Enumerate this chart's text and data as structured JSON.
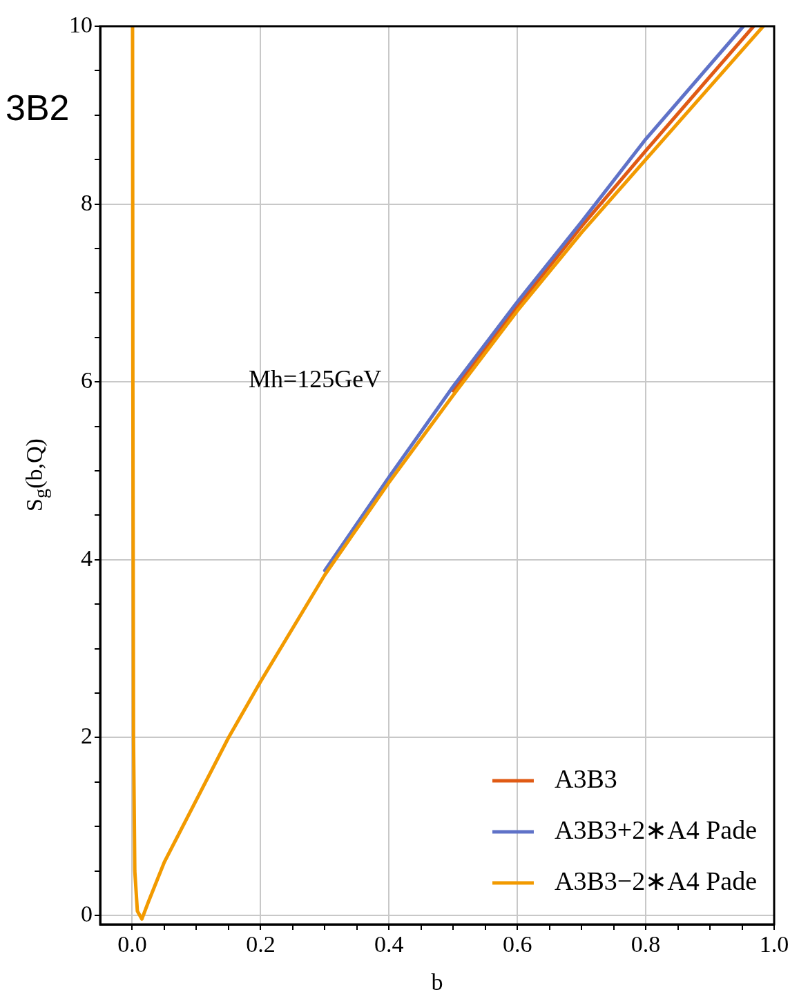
{
  "chart_data": {
    "type": "line",
    "xlabel": "b",
    "ylabel": "S$_{g}$(b,Q)",
    "xlim": [
      -0.05,
      1.0
    ],
    "ylim": [
      -0.1,
      10
    ],
    "xticks": [
      {
        "value": 0,
        "label": "0.0"
      },
      {
        "value": 0.05,
        "label": null
      },
      {
        "value": 0.1,
        "label": null
      },
      {
        "value": 0.15,
        "label": null
      },
      {
        "value": 0.2,
        "label": "0.2"
      },
      {
        "value": 0.25,
        "label": null
      },
      {
        "value": 0.3,
        "label": null
      },
      {
        "value": 0.35,
        "label": null
      },
      {
        "value": 0.4,
        "label": "0.4"
      },
      {
        "value": 0.45,
        "label": null
      },
      {
        "value": 0.5,
        "label": null
      },
      {
        "value": 0.55,
        "label": null
      },
      {
        "value": 0.6,
        "label": "0.6"
      },
      {
        "value": 0.65,
        "label": null
      },
      {
        "value": 0.7,
        "label": null
      },
      {
        "value": 0.75,
        "label": null
      },
      {
        "value": 0.8,
        "label": "0.8"
      },
      {
        "value": 0.85,
        "label": null
      },
      {
        "value": 0.9,
        "label": null
      },
      {
        "value": 0.95,
        "label": null
      },
      {
        "value": 1.0,
        "label": "1.0"
      }
    ],
    "yticks": [
      0,
      {
        "value": 0.5,
        "label": null
      },
      {
        "value": 1,
        "label": null
      },
      {
        "value": 1.5,
        "label": null
      },
      2,
      {
        "value": 2.5,
        "label": null
      },
      {
        "value": 3,
        "label": null
      },
      {
        "value": 3.5,
        "label": null
      },
      4,
      {
        "value": 4.5,
        "label": null
      },
      {
        "value": 5,
        "label": null
      },
      {
        "value": 5.5,
        "label": null
      },
      6,
      {
        "value": 6.5,
        "label": null
      },
      {
        "value": 7,
        "label": null
      },
      {
        "value": 7.5,
        "label": null
      },
      8,
      {
        "value": 8.5,
        "label": null
      },
      {
        "value": 9,
        "label": null
      },
      {
        "value": 9.5,
        "label": null
      },
      10
    ],
    "grid": true,
    "legend": "bottom right",
    "line_style": "solid",
    "marker": "none",
    "annotations": [
      "Mh=125GeV",
      "3B2"
    ],
    "series": [
      {
        "name": "A3B3",
        "color": "#e05a14",
        "x": [
          0.5,
          0.6,
          0.7,
          0.8,
          0.968
        ],
        "values": [
          5.9,
          6.85,
          7.75,
          8.6,
          10
        ]
      },
      {
        "name": "A3B3+2∗A4 Pade",
        "color": "#5f72c8",
        "x": [
          0.3,
          0.4,
          0.5,
          0.6,
          0.7,
          0.8,
          0.952
        ],
        "values": [
          3.88,
          4.93,
          5.95,
          6.9,
          7.8,
          8.73,
          10
        ]
      },
      {
        "name": "A3B3−2∗A4 Pade",
        "color": "#f29a00",
        "x": [
          0.0005,
          0.001,
          0.002,
          0.004,
          0.008,
          0.015,
          0.025,
          0.05,
          0.1,
          0.15,
          0.2,
          0.3,
          0.4,
          0.5,
          0.6,
          0.7,
          0.8,
          0.983
        ],
        "values": [
          10,
          6,
          2,
          0.5,
          0.05,
          -0.04,
          0.15,
          0.6,
          1.3,
          2.0,
          2.63,
          3.83,
          4.87,
          5.85,
          6.8,
          7.68,
          8.5,
          10
        ]
      }
    ]
  }
}
